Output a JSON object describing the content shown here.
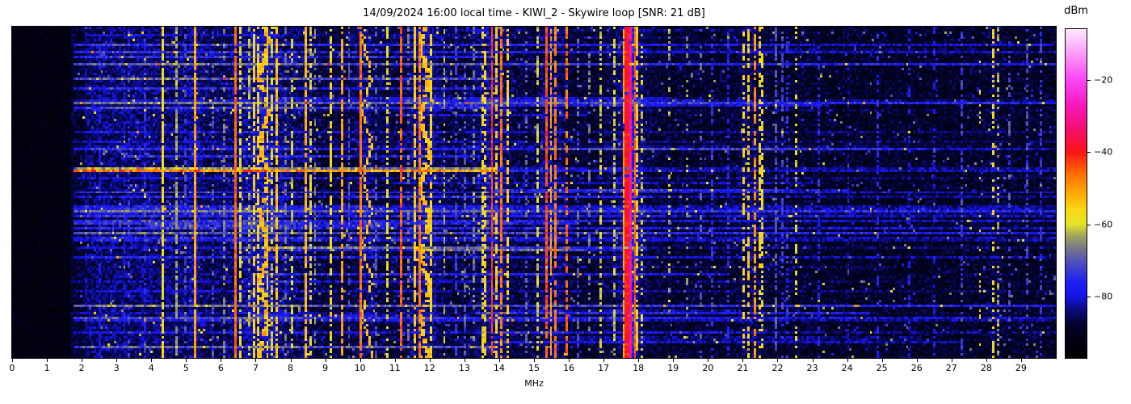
{
  "title": "14/09/2024 16:00 local time - KIWI_2 - Skywire loop [SNR: 21 dB]",
  "x_axis": {
    "label": "MHz",
    "min_mhz": 0,
    "max_mhz": 30,
    "tick_values": [
      0,
      1,
      2,
      3,
      4,
      5,
      6,
      7,
      8,
      9,
      10,
      11,
      12,
      13,
      14,
      15,
      16,
      17,
      18,
      19,
      20,
      21,
      22,
      23,
      24,
      25,
      26,
      27,
      28,
      29
    ],
    "tick_labels": [
      "0",
      "1",
      "2",
      "3",
      "4",
      "5",
      "6",
      "7",
      "8",
      "9",
      "10",
      "11",
      "12",
      "13",
      "14",
      "15",
      "16",
      "17",
      "18",
      "19",
      "20",
      "21",
      "22",
      "23",
      "24",
      "25",
      "26",
      "27",
      "28",
      "29"
    ]
  },
  "y_axis": {
    "label": "",
    "tick_labels": []
  },
  "colorbar": {
    "label": "dBm",
    "vmin": -97,
    "vmax": -6,
    "tick_values": [
      -20,
      -40,
      -60,
      -80
    ],
    "tick_labels": [
      "−20",
      "−40",
      "−60",
      "−80"
    ],
    "colormap_stops": [
      [
        0.0,
        "#000000"
      ],
      [
        0.05,
        "#010112"
      ],
      [
        0.1,
        "#03032a"
      ],
      [
        0.145,
        "#0a0a78"
      ],
      [
        0.187,
        "#1414e6"
      ],
      [
        0.23,
        "#1e1ef0"
      ],
      [
        0.28,
        "#4646c8"
      ],
      [
        0.33,
        "#73738c"
      ],
      [
        0.37,
        "#a0a05f"
      ],
      [
        0.407,
        "#e4e428"
      ],
      [
        0.45,
        "#fad714"
      ],
      [
        0.5,
        "#ffaa00"
      ],
      [
        0.56,
        "#ff6e05"
      ],
      [
        0.626,
        "#f81414"
      ],
      [
        0.7,
        "#f30f73"
      ],
      [
        0.77,
        "#f619be"
      ],
      [
        0.846,
        "#fa46f5"
      ],
      [
        0.92,
        "#fc96fa"
      ],
      [
        1.0,
        "#ffeaff"
      ]
    ]
  },
  "chart_data": {
    "type": "heatmap",
    "subtype": "hf-spectrogram-waterfall",
    "description": "HF band waterfall, frequency 0-30 MHz horizontal, time vertical (no time labels shown), power in dBm via colorbar",
    "x_unit": "MHz",
    "x_range": [
      0,
      30
    ],
    "value_unit": "dBm",
    "value_range": [
      -97,
      -6
    ],
    "render_grid": {
      "cols": 460,
      "rows": 137,
      "seed": 20240914
    },
    "noise_regions_fields": [
      "f_start_mhz",
      "f_end_mhz",
      "floor_dbm",
      "half_spread_db"
    ],
    "noise_regions": [
      [
        0.0,
        1.72,
        -96.5,
        3.5
      ],
      [
        1.72,
        2.1,
        -93.5,
        5.0
      ],
      [
        2.1,
        8.5,
        -93.0,
        7.0
      ],
      [
        8.5,
        16.0,
        -94.0,
        6.5
      ],
      [
        16.0,
        23.0,
        -94.5,
        6.0
      ],
      [
        23.0,
        30.0,
        -95.0,
        6.0
      ]
    ],
    "noise_spike_probability": 0.025,
    "band_halos_fields": [
      "center_mhz",
      "sigma_mhz",
      "amplitude_db"
    ],
    "band_halos": [
      [
        3.5,
        1.2,
        1.5
      ],
      [
        5.27,
        0.12,
        3
      ],
      [
        7.2,
        0.45,
        4
      ],
      [
        8.5,
        0.1,
        2
      ],
      [
        10.15,
        0.2,
        3
      ],
      [
        11.85,
        0.35,
        4
      ],
      [
        13.8,
        0.35,
        4
      ],
      [
        15.5,
        0.25,
        3.5
      ],
      [
        17.75,
        0.12,
        10
      ],
      [
        17.75,
        0.4,
        4
      ],
      [
        21.25,
        0.25,
        2.5
      ],
      [
        28.2,
        0.15,
        2
      ]
    ],
    "horizontal_streaks": {
      "comment": "impulsive noise events: light horizontal rows across the band, absent below 1.8 MHz edge region",
      "count_thin": 68,
      "boost_db_thin": [
        3,
        12
      ],
      "count_strong": 10,
      "boost_db_strong": [
        10,
        18
      ],
      "strong_f_max_mhz": 14,
      "f_min_mhz": 1.8
    },
    "signal_bands_fields": [
      "center_mhz",
      "width_mhz",
      "peak_dbm",
      "duty_cycle",
      "wiggle"
    ],
    "signal_bands": [
      [
        2.5,
        0.03,
        -78,
        0.5,
        0
      ],
      [
        3.2,
        0.03,
        -76,
        0.45,
        0
      ],
      [
        3.35,
        0.03,
        -73,
        0.35,
        0
      ],
      [
        3.8,
        0.03,
        -75,
        0.4,
        0
      ],
      [
        4.36,
        0.05,
        -57,
        0.85,
        0
      ],
      [
        4.7,
        0.03,
        -63,
        0.8,
        0
      ],
      [
        5.0,
        0.03,
        -72,
        0.4,
        0
      ],
      [
        5.27,
        0.06,
        -51,
        0.95,
        0
      ],
      [
        5.8,
        0.03,
        -70,
        0.4,
        0
      ],
      [
        6.07,
        0.03,
        -66,
        0.5,
        0
      ],
      [
        6.4,
        0.05,
        -46,
        0.97,
        0
      ],
      [
        6.57,
        0.04,
        -59,
        0.6,
        0
      ],
      [
        6.79,
        0.03,
        -62,
        0.5,
        0
      ],
      [
        6.95,
        0.05,
        -57,
        0.65,
        0
      ],
      [
        7.1,
        0.05,
        -56,
        0.65,
        0
      ],
      [
        7.22,
        0.13,
        -53,
        0.85,
        1
      ],
      [
        7.35,
        0.05,
        -58,
        0.6,
        0
      ],
      [
        7.47,
        0.04,
        -61,
        0.5,
        0
      ],
      [
        7.61,
        0.05,
        -54,
        0.7,
        0
      ],
      [
        7.85,
        0.03,
        -67,
        0.4,
        0
      ],
      [
        8.08,
        0.04,
        -61,
        0.5,
        0
      ],
      [
        8.47,
        0.07,
        -53,
        0.85,
        0
      ],
      [
        8.6,
        0.04,
        -60,
        0.5,
        0
      ],
      [
        8.71,
        0.03,
        -65,
        0.4,
        0
      ],
      [
        9.17,
        0.05,
        -57,
        0.6,
        0
      ],
      [
        9.47,
        0.05,
        -51,
        0.7,
        0
      ],
      [
        9.68,
        0.03,
        -70,
        0.5,
        0
      ],
      [
        10.0,
        0.05,
        -47,
        0.92,
        0
      ],
      [
        10.18,
        0.09,
        -54,
        0.75,
        1
      ],
      [
        10.45,
        0.03,
        -70,
        0.4,
        0
      ],
      [
        10.78,
        0.05,
        -59,
        0.55,
        0
      ],
      [
        11.18,
        0.04,
        -45,
        0.9,
        0
      ],
      [
        11.4,
        0.03,
        -67,
        0.4,
        0
      ],
      [
        11.6,
        0.06,
        -55,
        0.75,
        0
      ],
      [
        11.72,
        0.05,
        -47,
        0.85,
        0
      ],
      [
        11.88,
        0.13,
        -54,
        0.85,
        1
      ],
      [
        12.05,
        0.05,
        -56,
        0.7,
        0
      ],
      [
        12.42,
        0.03,
        -62,
        0.45,
        0
      ],
      [
        12.75,
        0.03,
        -73,
        0.5,
        0
      ],
      [
        13.0,
        0.03,
        -69,
        0.4,
        0
      ],
      [
        13.3,
        0.03,
        -66,
        0.4,
        0
      ],
      [
        13.5,
        0.05,
        -59,
        0.55,
        0
      ],
      [
        13.63,
        0.04,
        -56,
        0.6,
        0
      ],
      [
        13.77,
        0.05,
        -43,
        0.95,
        0
      ],
      [
        13.9,
        0.04,
        -55,
        0.6,
        0
      ],
      [
        14.05,
        0.05,
        -47,
        0.85,
        0
      ],
      [
        14.22,
        0.07,
        -56,
        0.6,
        0
      ],
      [
        14.75,
        0.03,
        -69,
        0.4,
        0
      ],
      [
        15.1,
        0.04,
        -61,
        0.5,
        0
      ],
      [
        15.37,
        0.05,
        -44,
        0.9,
        0
      ],
      [
        15.52,
        0.05,
        -51,
        0.8,
        0
      ],
      [
        15.63,
        0.04,
        -47,
        0.8,
        0
      ],
      [
        15.97,
        0.03,
        -46,
        0.7,
        0
      ],
      [
        16.25,
        0.03,
        -69,
        0.4,
        0
      ],
      [
        16.6,
        0.03,
        -67,
        0.4,
        0
      ],
      [
        16.95,
        0.03,
        -61,
        0.5,
        0
      ],
      [
        17.3,
        0.03,
        -61,
        0.5,
        0
      ],
      [
        17.58,
        0.06,
        -51,
        0.85,
        0
      ],
      [
        17.7,
        0.1,
        -40,
        0.97,
        0
      ],
      [
        17.78,
        0.04,
        -30,
        0.98,
        0
      ],
      [
        17.88,
        0.05,
        -45,
        0.9,
        0
      ],
      [
        17.97,
        0.05,
        -55,
        0.7,
        0
      ],
      [
        18.12,
        0.03,
        -61,
        0.45,
        0
      ],
      [
        18.9,
        0.03,
        -63,
        0.3,
        0
      ],
      [
        19.42,
        0.03,
        -65,
        0.3,
        0
      ],
      [
        19.8,
        0.03,
        -69,
        0.3,
        0
      ],
      [
        20.15,
        0.03,
        -74,
        0.5,
        0
      ],
      [
        20.6,
        0.03,
        -76,
        0.35,
        0
      ],
      [
        21.05,
        0.05,
        -57,
        0.5,
        0
      ],
      [
        21.18,
        0.05,
        -55,
        0.55,
        0
      ],
      [
        21.35,
        0.05,
        -49,
        0.7,
        0
      ],
      [
        21.47,
        0.04,
        -57,
        0.5,
        0
      ],
      [
        21.58,
        0.03,
        -59,
        0.5,
        0
      ],
      [
        21.93,
        0.03,
        -71,
        0.6,
        0
      ],
      [
        22.12,
        0.03,
        -72,
        0.5,
        0
      ],
      [
        22.28,
        0.03,
        -74,
        0.4,
        0
      ],
      [
        22.5,
        0.05,
        -59,
        0.35,
        0
      ],
      [
        23.2,
        0.03,
        -76,
        0.4,
        0
      ],
      [
        24.0,
        0.03,
        -78,
        0.3,
        0
      ],
      [
        24.9,
        0.03,
        -75,
        0.4,
        0
      ],
      [
        25.8,
        0.03,
        -77,
        0.3,
        0
      ],
      [
        26.5,
        0.03,
        -78,
        0.3,
        0
      ],
      [
        27.3,
        0.03,
        -73,
        0.5,
        0
      ],
      [
        27.8,
        0.03,
        -57,
        0.15,
        0
      ],
      [
        28.18,
        0.06,
        -57,
        0.45,
        0
      ],
      [
        28.35,
        0.04,
        -63,
        0.35,
        0
      ],
      [
        28.65,
        0.03,
        -71,
        0.4,
        0
      ],
      [
        29.2,
        0.03,
        -72,
        0.5,
        0
      ],
      [
        29.6,
        0.03,
        -74,
        0.4,
        0
      ]
    ]
  }
}
